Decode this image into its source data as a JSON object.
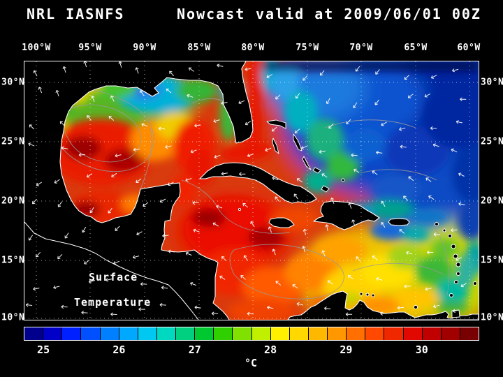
{
  "title": {
    "left": "NRL IASNFS",
    "center": "Nowcast",
    "right": "valid at 2009/06/01 00Z"
  },
  "map": {
    "lon_labels": [
      "100°W",
      "95°W",
      "90°W",
      "85°W",
      "80°W",
      "75°W",
      "70°W",
      "65°W",
      "60°W"
    ],
    "lat_labels": [
      "30°N",
      "25°N",
      "20°N",
      "15°N",
      "10°N"
    ],
    "annotation": {
      "line1": "Surface",
      "line2": "Temperature"
    }
  },
  "colorbar": {
    "unit": "°C",
    "tick_labels": [
      "25",
      "26",
      "27",
      "28",
      "29",
      "30"
    ],
    "range": [
      24.75,
      30.75
    ],
    "segment_colors": [
      "#00008C",
      "#0000C8",
      "#0020FF",
      "#0050FF",
      "#0080FF",
      "#00A8FF",
      "#00C8F0",
      "#00D8C0",
      "#00D080",
      "#00C830",
      "#30D000",
      "#80E000",
      "#C0F000",
      "#FFF000",
      "#FFD800",
      "#FFB800",
      "#FF9800",
      "#FF7000",
      "#FF4800",
      "#F02800",
      "#E00800",
      "#C00000",
      "#A00000",
      "#780000"
    ]
  },
  "chart_data": {
    "type": "heatmap",
    "title": "NRL IASNFS Nowcast valid at 2009/06/01 00Z",
    "variable": "Surface Temperature",
    "unit": "°C",
    "x_ticks": [
      "100°W",
      "95°W",
      "90°W",
      "85°W",
      "80°W",
      "75°W",
      "70°W",
      "65°W",
      "60°W"
    ],
    "y_ticks": [
      "30°N",
      "25°N",
      "20°N",
      "15°N",
      "10°N"
    ],
    "colorbar_ticks": [
      25,
      26,
      27,
      28,
      29,
      30
    ],
    "colorbar_range": [
      24.75,
      30.75
    ],
    "legend_position": "bottom",
    "grid": true
  }
}
